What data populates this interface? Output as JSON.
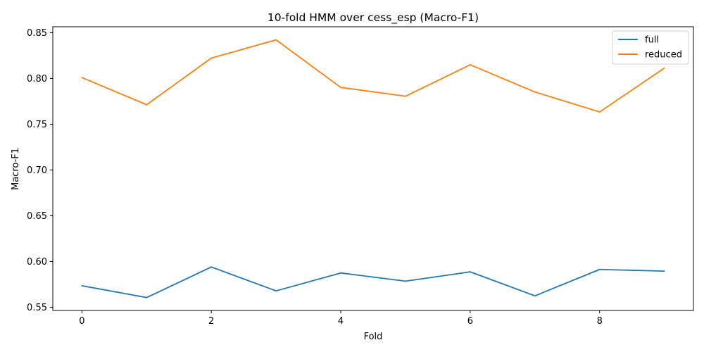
{
  "chart_data": {
    "type": "line",
    "title": "10-fold HMM over cess_esp (Macro-F1)",
    "xlabel": "Fold",
    "ylabel": "Macro-F1",
    "x": [
      0,
      1,
      2,
      3,
      4,
      5,
      6,
      7,
      8,
      9
    ],
    "xlim": [
      -0.45,
      9.45
    ],
    "ylim": [
      0.5465,
      0.8565
    ],
    "xticks": [
      0,
      2,
      4,
      6,
      8
    ],
    "yticks": [
      0.55,
      0.6,
      0.65,
      0.7,
      0.75,
      0.8,
      0.85
    ],
    "ytick_labels": [
      "0.55",
      "0.60",
      "0.65",
      "0.70",
      "0.75",
      "0.80",
      "0.85"
    ],
    "grid": false,
    "legend_position": "top-right",
    "series": [
      {
        "name": "full",
        "color": "#1f77b4",
        "values": [
          0.5735,
          0.5606,
          0.594,
          0.5679,
          0.5875,
          0.5785,
          0.5887,
          0.5625,
          0.5913,
          0.5895
        ]
      },
      {
        "name": "reduced",
        "color": "#ff7f0e",
        "values": [
          0.801,
          0.7713,
          0.8223,
          0.8422,
          0.7902,
          0.7806,
          0.815,
          0.7852,
          0.7634,
          0.8113
        ]
      }
    ]
  }
}
